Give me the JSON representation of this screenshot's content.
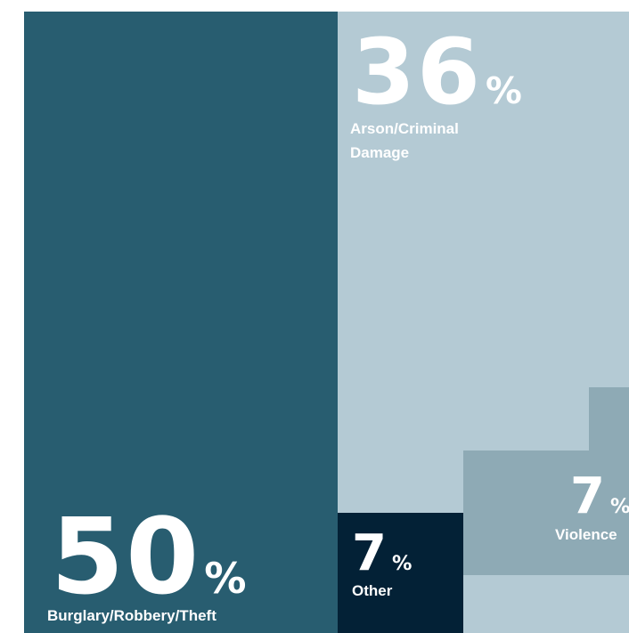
{
  "chart_data": {
    "type": "treemap",
    "title": "",
    "segments": [
      {
        "key": "burglary",
        "label": "Burglary/Robbery/Theft",
        "value": 50,
        "display": "50",
        "unit": "%",
        "color": "#285d70"
      },
      {
        "key": "arson",
        "label": "Arson/Criminal Damage",
        "value": 36,
        "display": "36",
        "unit": "%",
        "color": "#b4cad4"
      },
      {
        "key": "violence",
        "label": "Violence",
        "value": 7,
        "display": "7",
        "unit": "%",
        "color": "#8eaab5"
      },
      {
        "key": "other",
        "label": "Other",
        "value": 7,
        "display": "7",
        "unit": "%",
        "color": "#032136"
      }
    ]
  }
}
